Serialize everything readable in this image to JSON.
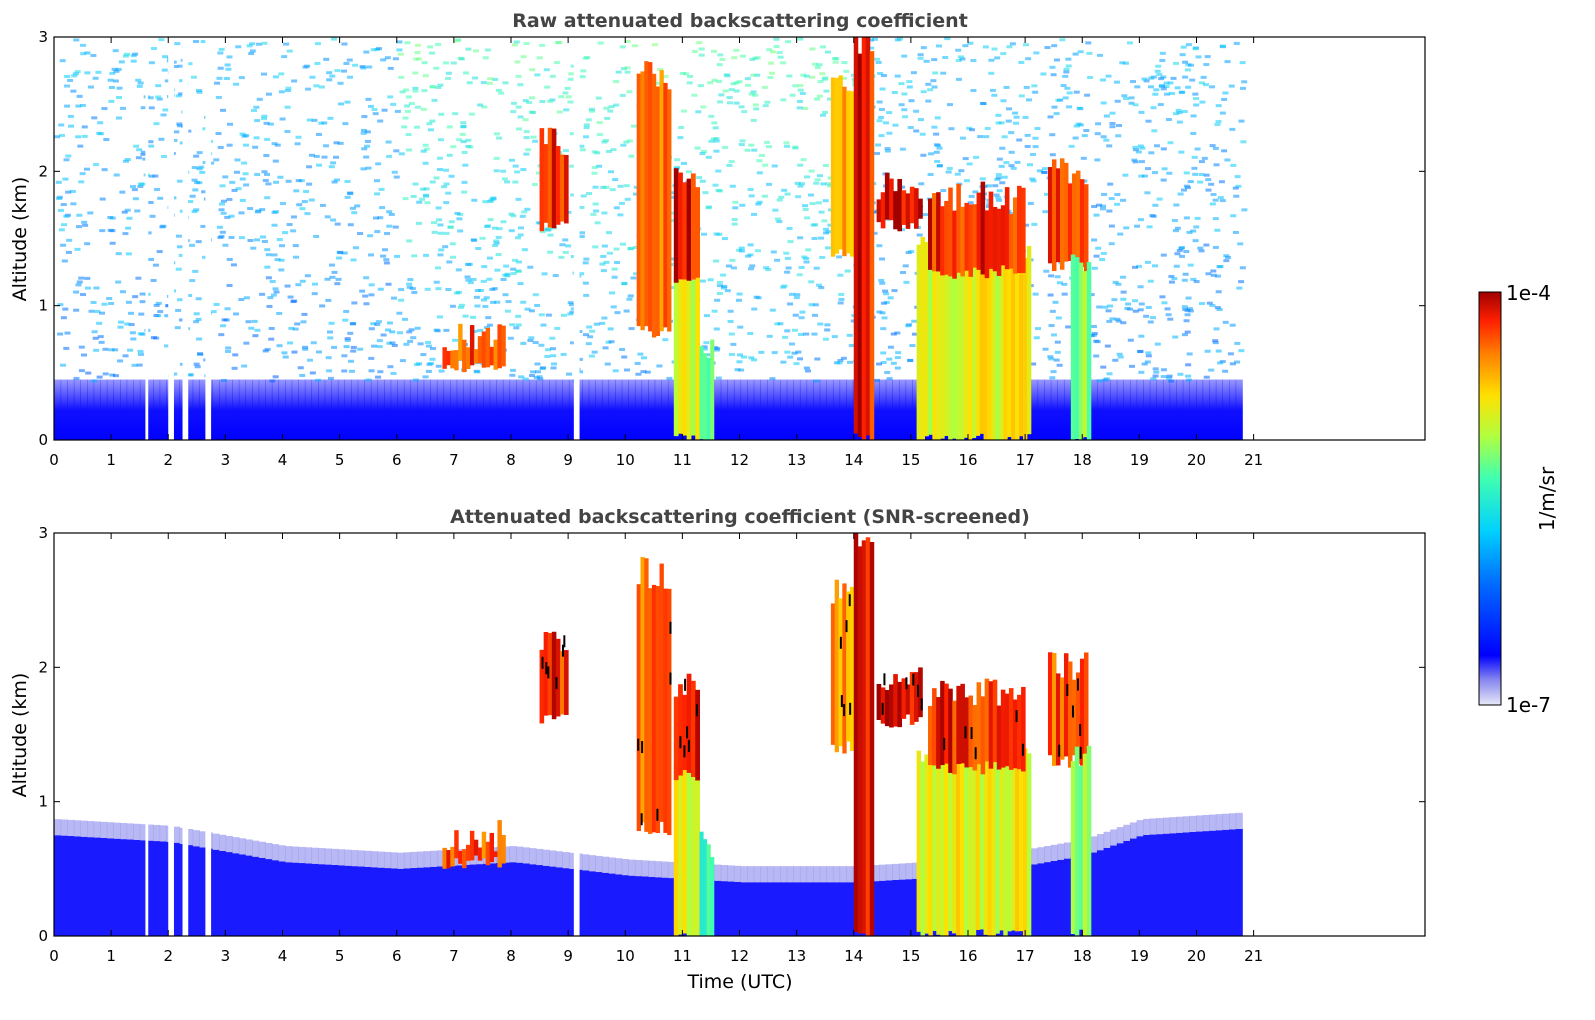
{
  "chart_data": [
    {
      "type": "heatmap",
      "title": "Raw attenuated backscattering coefficient",
      "xlabel": "",
      "ylabel": "Altitude (km)",
      "xlim": [
        0,
        24
      ],
      "ylim": [
        0,
        3
      ],
      "x_ticks": [
        "0",
        "1",
        "2",
        "3",
        "4",
        "5",
        "6",
        "7",
        "8",
        "9",
        "10",
        "11",
        "12",
        "13",
        "14",
        "15",
        "16",
        "17",
        "18",
        "19",
        "20",
        "21"
      ],
      "y_ticks": [
        "0",
        "1",
        "2",
        "3"
      ],
      "data_end_time": 20.8,
      "data_gaps": [
        [
          1.6,
          1.65
        ],
        [
          2.0,
          2.1
        ],
        [
          2.25,
          2.35
        ],
        [
          2.65,
          2.75
        ],
        [
          9.1,
          9.2
        ]
      ],
      "boundary_layer_top_km": 0.45,
      "features": [
        {
          "kind": "aerosol_layer",
          "t_start": 6.8,
          "t_end": 7.9,
          "alt_bottom": 0.55,
          "alt_top": 0.75,
          "intensity": 0.85
        },
        {
          "kind": "cloud",
          "t_start": 8.5,
          "t_end": 9.0,
          "alt_bottom": 1.6,
          "alt_top": 2.2,
          "intensity": 0.9
        },
        {
          "kind": "cloud",
          "t_start": 10.2,
          "t_end": 10.8,
          "alt_bottom": 0.8,
          "alt_top": 2.7,
          "intensity": 0.8
        },
        {
          "kind": "precipitation",
          "t_start": 10.85,
          "t_end": 11.3,
          "alt_bottom": 0.0,
          "alt_top": 1.3,
          "intensity": 0.62
        },
        {
          "kind": "cloud",
          "t_start": 10.85,
          "t_end": 11.3,
          "alt_bottom": 1.2,
          "alt_top": 1.9,
          "intensity": 0.93
        },
        {
          "kind": "precipitation",
          "t_start": 11.3,
          "t_end": 11.55,
          "alt_bottom": 0.0,
          "alt_top": 0.7,
          "intensity": 0.42
        },
        {
          "kind": "cloud",
          "t_start": 13.6,
          "t_end": 14.0,
          "alt_bottom": 1.4,
          "alt_top": 2.6,
          "intensity": 0.75
        },
        {
          "kind": "column",
          "t_start": 14.0,
          "t_end": 14.35,
          "alt_bottom": 0.0,
          "alt_top": 3.0,
          "intensity": 0.92
        },
        {
          "kind": "cloud",
          "t_start": 14.4,
          "t_end": 15.2,
          "alt_bottom": 1.6,
          "alt_top": 1.9,
          "intensity": 0.95
        },
        {
          "kind": "precipitation",
          "t_start": 15.1,
          "t_end": 17.1,
          "alt_bottom": 0.0,
          "alt_top": 1.4,
          "intensity": 0.62
        },
        {
          "kind": "cloud",
          "t_start": 15.3,
          "t_end": 17.0,
          "alt_bottom": 1.25,
          "alt_top": 1.8,
          "intensity": 0.9
        },
        {
          "kind": "cloud",
          "t_start": 17.4,
          "t_end": 18.1,
          "alt_bottom": 1.3,
          "alt_top": 2.0,
          "intensity": 0.85
        },
        {
          "kind": "precipitation",
          "t_start": 17.8,
          "t_end": 18.15,
          "alt_bottom": 0.0,
          "alt_top": 1.3,
          "intensity": 0.5
        }
      ]
    },
    {
      "type": "heatmap",
      "title": "Attenuated backscattering coefficient (SNR-screened)",
      "xlabel": "Time (UTC)",
      "ylabel": "Altitude (km)",
      "xlim": [
        0,
        24
      ],
      "ylim": [
        0,
        3
      ],
      "x_ticks": [
        "0",
        "1",
        "2",
        "3",
        "4",
        "5",
        "6",
        "7",
        "8",
        "9",
        "10",
        "11",
        "12",
        "13",
        "14",
        "15",
        "16",
        "17",
        "18",
        "19",
        "20",
        "21"
      ],
      "y_ticks": [
        "0",
        "1",
        "2",
        "3"
      ],
      "data_end_time": 20.8,
      "screened": true,
      "boundary_layer_top_km": [
        [
          0,
          0.75
        ],
        [
          2,
          0.7
        ],
        [
          4,
          0.55
        ],
        [
          6,
          0.5
        ],
        [
          8,
          0.55
        ],
        [
          9,
          0.5
        ],
        [
          10,
          0.45
        ],
        [
          12,
          0.4
        ],
        [
          14,
          0.4
        ],
        [
          16,
          0.45
        ],
        [
          18,
          0.6
        ],
        [
          19,
          0.75
        ],
        [
          20.8,
          0.8
        ]
      ]
    }
  ],
  "colorbar": {
    "label": "1/m/sr",
    "max_label": "1e-4",
    "min_label": "1e-7",
    "scale": "log",
    "colormap": "jet",
    "low_end_colors": [
      "#e8e8f8",
      "#b8b8f0",
      "#8080f0",
      "#4040f0"
    ],
    "jet_colors": [
      "#0000ff",
      "#0060ff",
      "#00c8ff",
      "#40ffb0",
      "#b0ff40",
      "#ffe000",
      "#ff8000",
      "#ff2000",
      "#a00000"
    ]
  }
}
